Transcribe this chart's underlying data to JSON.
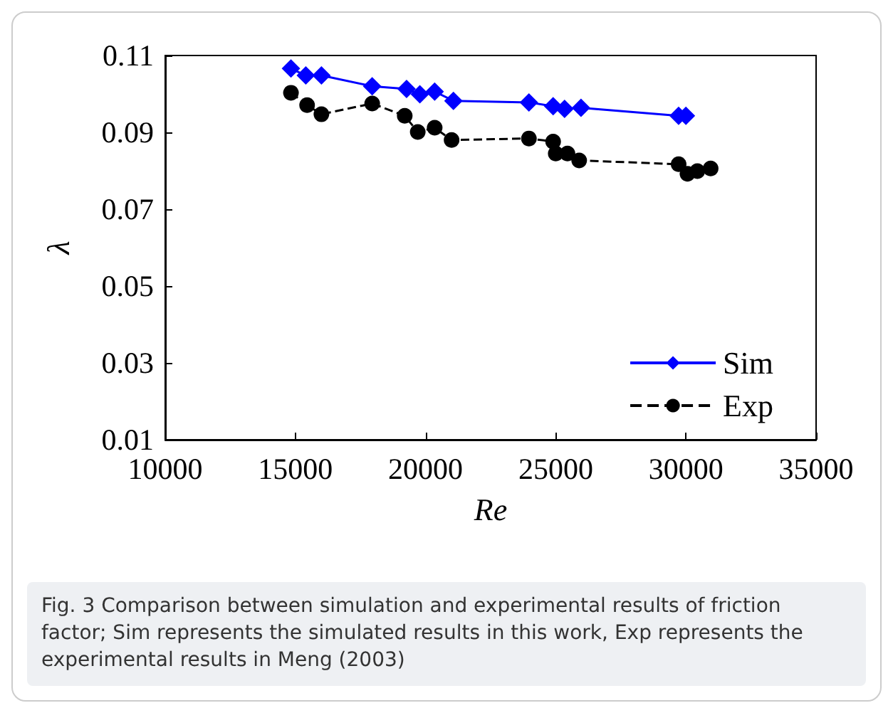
{
  "chart_data": {
    "type": "line",
    "xlabel": "Re",
    "ylabel": "λ",
    "xlim": [
      10000,
      35000
    ],
    "xticks": [
      10000,
      15000,
      20000,
      25000,
      30000,
      35000
    ],
    "ylim": [
      0.01,
      0.11
    ],
    "yticks": [
      0.01,
      0.03,
      0.05,
      0.07,
      0.09,
      0.11
    ],
    "grid": false,
    "legend": "bottom right",
    "series": [
      {
        "name": "Sim",
        "color": "#0000ff",
        "marker": "diamond",
        "line_style": "solid",
        "x": [
          14830,
          15400,
          16000,
          17950,
          19270,
          19780,
          20350,
          21070,
          23970,
          24900,
          25340,
          25970,
          29720,
          30000
        ],
        "values": [
          0.1066,
          0.1048,
          0.1048,
          0.102,
          0.1013,
          0.0999,
          0.1006,
          0.0982,
          0.0978,
          0.0968,
          0.0961,
          0.0964,
          0.0943,
          0.0943
        ]
      },
      {
        "name": "Exp",
        "color": "#000000",
        "marker": "circle",
        "line_style": "dashed",
        "x": [
          14830,
          15450,
          16000,
          17950,
          19200,
          19700,
          20350,
          21000,
          23970,
          24900,
          25000,
          25450,
          25900,
          29720,
          30060,
          30440,
          30950
        ],
        "values": [
          0.1003,
          0.0971,
          0.0947,
          0.0975,
          0.0943,
          0.0901,
          0.0912,
          0.088,
          0.0884,
          0.0876,
          0.0845,
          0.0845,
          0.0827,
          0.0817,
          0.0792,
          0.0799,
          0.0806
        ]
      }
    ],
    "annotations": [
      "Fig. 3  Comparison between simulation and experimental results of friction factor; Sim represents the simulated results in this work, Exp represents the experimental results in Meng (2003)"
    ]
  }
}
